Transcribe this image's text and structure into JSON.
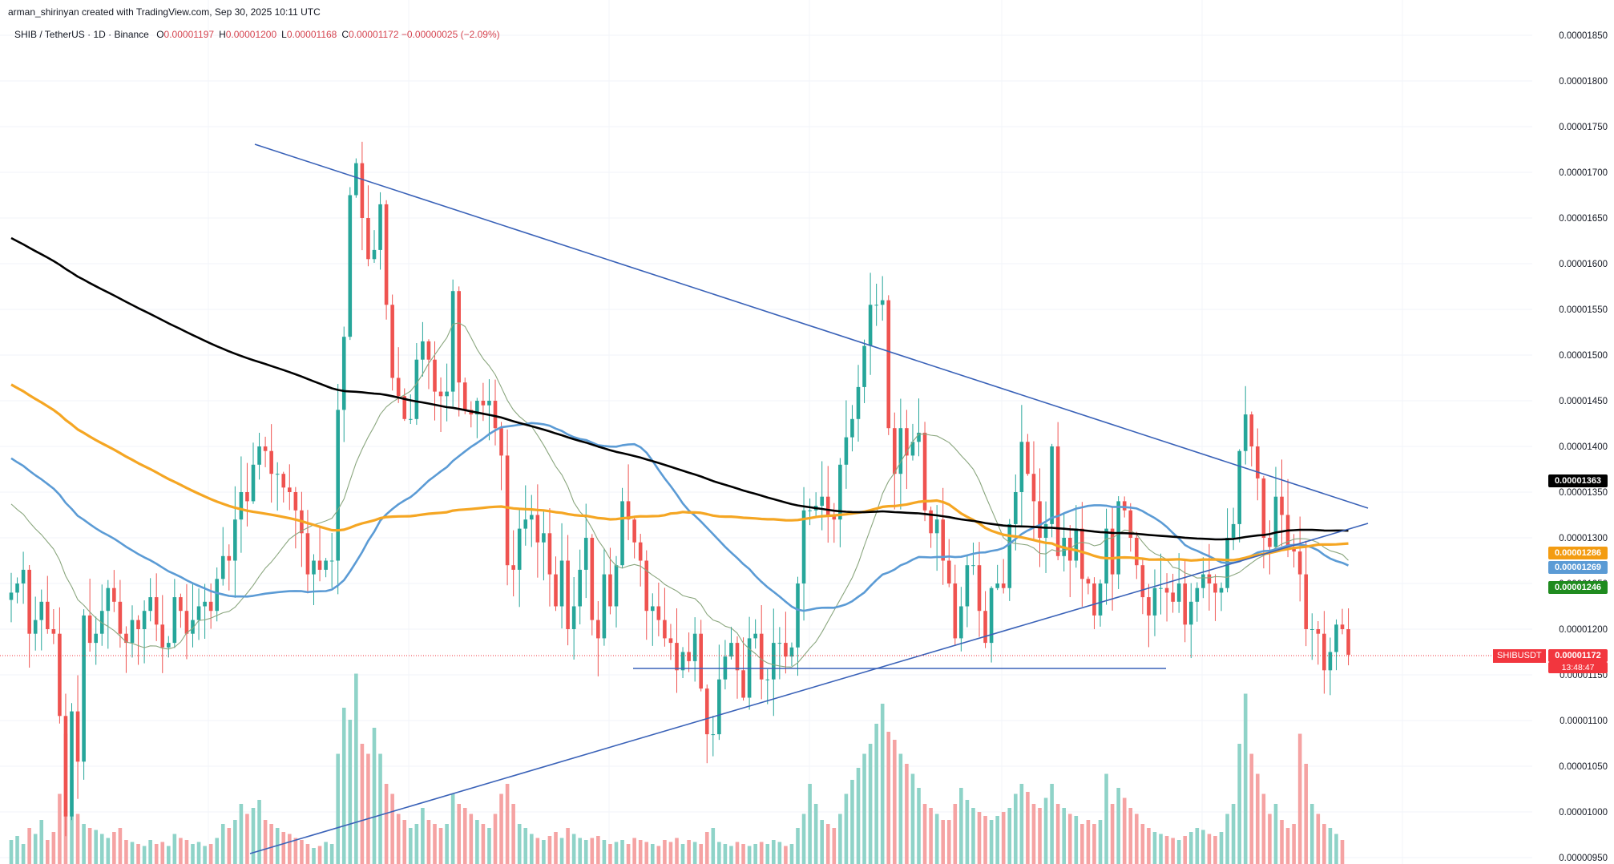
{
  "header": {
    "credit": "arman_shirinyan created with TradingView.com, Sep 30, 2025 10:11 UTC",
    "symbol": "SHIB / TetherUS · 1D · Binance",
    "ohlc": [
      {
        "label": "O",
        "value": "0.00001197"
      },
      {
        "label": "H",
        "value": "0.00001200"
      },
      {
        "label": "L",
        "value": "0.00001168"
      },
      {
        "label": "C",
        "value": "0.00001172"
      },
      {
        "label": "",
        "value": "−0.00000025 (−2.09%)"
      }
    ]
  },
  "price_tags": {
    "ma200": {
      "text": "0.00001363",
      "color": "#000000"
    },
    "ma100": {
      "text": "0.00001286",
      "color": "#f39c12"
    },
    "ma50": {
      "text": "0.00001269",
      "color": "#5b9bd5"
    },
    "ma20": {
      "text": "0.00001246",
      "color": "#1f8b1f"
    },
    "last": {
      "symbol": "SHIBUSDT",
      "text": "0.00001172",
      "countdown": "13:48:47",
      "color": "#f2363e"
    }
  },
  "colors": {
    "up": "#26a69a",
    "down": "#ef5350",
    "vol_up": "#8fd3c8",
    "vol_down": "#f5a3a3",
    "ma200": "#000000",
    "ma100": "#f5a623",
    "ma50": "#5b9bd5",
    "ma20": "#8aa67e",
    "trendline": "#3a62b8"
  },
  "chart_data": {
    "type": "candlestick",
    "y_axis": {
      "ticks": [
        "0.00001850",
        "0.00001800",
        "0.00001750",
        "0.00001700",
        "0.00001650",
        "0.00001600",
        "0.00001550",
        "0.00001500",
        "0.00001450",
        "0.00001400",
        "0.00001350",
        "0.00001300",
        "0.00001250",
        "0.00001200",
        "0.00001150",
        "0.00001100",
        "0.00001050",
        "0.00001000",
        "0.00000950"
      ],
      "ylim": [
        9.45e-06,
        1.885e-05
      ],
      "position": "right",
      "grid": true
    },
    "last_price": 1.172e-05,
    "closes": [
      1.24,
      1.25,
      1.265,
      1.195,
      1.21,
      1.23,
      1.2,
      1.195,
      1.105,
      0.995,
      1.11,
      1.055,
      1.215,
      1.185,
      1.195,
      1.22,
      1.245,
      1.23,
      1.195,
      1.185,
      1.21,
      1.2,
      1.22,
      1.235,
      1.205,
      1.18,
      1.185,
      1.235,
      1.22,
      1.195,
      1.21,
      1.225,
      1.23,
      1.22,
      1.255,
      1.28,
      1.275,
      1.32,
      1.35,
      1.34,
      1.38,
      1.4,
      1.395,
      1.37,
      1.37,
      1.355,
      1.35,
      1.33,
      1.305,
      1.26,
      1.275,
      1.265,
      1.275,
      1.275,
      1.44,
      1.52,
      1.675,
      1.71,
      1.65,
      1.605,
      1.615,
      1.665,
      1.555,
      1.475,
      1.455,
      1.43,
      1.43,
      1.495,
      1.515,
      1.495,
      1.46,
      1.455,
      1.46,
      1.57,
      1.47,
      1.44,
      1.435,
      1.45,
      1.445,
      1.45,
      1.42,
      1.39,
      1.27,
      1.265,
      1.31,
      1.32,
      1.325,
      1.295,
      1.305,
      1.26,
      1.225,
      1.275,
      1.2,
      1.225,
      1.265,
      1.3,
      1.21,
      1.19,
      1.26,
      1.225,
      1.27,
      1.34,
      1.32,
      1.295,
      1.275,
      1.22,
      1.225,
      1.21,
      1.19,
      1.185,
      1.155,
      1.175,
      1.165,
      1.195,
      1.135,
      1.085,
      1.085,
      1.145,
      1.17,
      1.185,
      1.155,
      1.125,
      1.19,
      1.195,
      1.145,
      1.145,
      1.185,
      1.185,
      1.17,
      1.18,
      1.25,
      1.33,
      1.33,
      1.335,
      1.345,
      1.325,
      1.32,
      1.38,
      1.41,
      1.43,
      1.465,
      1.51,
      1.555,
      1.555,
      1.56,
      1.42,
      1.37,
      1.42,
      1.39,
      1.405,
      1.415,
      1.33,
      1.305,
      1.32,
      1.275,
      1.25,
      1.19,
      1.225,
      1.27,
      1.27,
      1.22,
      1.185,
      1.245,
      1.25,
      1.245,
      1.315,
      1.35,
      1.405,
      1.37,
      1.34,
      1.3,
      1.315,
      1.4,
      1.28,
      1.3,
      1.275,
      1.31,
      1.255,
      1.25,
      1.215,
      1.25,
      1.31,
      1.26,
      1.34,
      1.33,
      1.3,
      1.27,
      1.235,
      1.215,
      1.245,
      1.245,
      1.24,
      1.23,
      1.25,
      1.205,
      1.23,
      1.245,
      1.26,
      1.25,
      1.24,
      1.245,
      1.3,
      1.315,
      1.395,
      1.435,
      1.4,
      1.365,
      1.3,
      1.29,
      1.345,
      1.325,
      1.29,
      1.285,
      1.26,
      1.2,
      1.2,
      1.195,
      1.155,
      1.175,
      1.205,
      1.2,
      1.172
    ],
    "volume_relative": [
      0.12,
      0.14,
      0.1,
      0.18,
      0.15,
      0.22,
      0.12,
      0.16,
      0.35,
      0.65,
      0.42,
      0.25,
      0.2,
      0.18,
      0.17,
      0.15,
      0.13,
      0.16,
      0.18,
      0.12,
      0.11,
      0.1,
      0.09,
      0.12,
      0.1,
      0.11,
      0.09,
      0.15,
      0.13,
      0.12,
      0.1,
      0.11,
      0.09,
      0.1,
      0.13,
      0.2,
      0.18,
      0.22,
      0.3,
      0.25,
      0.28,
      0.32,
      0.22,
      0.2,
      0.18,
      0.16,
      0.15,
      0.13,
      0.12,
      0.1,
      0.08,
      0.09,
      0.11,
      0.1,
      0.55,
      0.78,
      0.72,
      0.95,
      0.6,
      0.55,
      0.68,
      0.55,
      0.4,
      0.35,
      0.25,
      0.22,
      0.18,
      0.2,
      0.28,
      0.22,
      0.2,
      0.18,
      0.2,
      0.35,
      0.3,
      0.28,
      0.25,
      0.22,
      0.2,
      0.18,
      0.25,
      0.35,
      0.4,
      0.3,
      0.2,
      0.18,
      0.15,
      0.13,
      0.12,
      0.14,
      0.16,
      0.13,
      0.18,
      0.15,
      0.13,
      0.12,
      0.13,
      0.14,
      0.12,
      0.1,
      0.11,
      0.12,
      0.1,
      0.13,
      0.12,
      0.11,
      0.1,
      0.09,
      0.12,
      0.11,
      0.13,
      0.1,
      0.12,
      0.11,
      0.1,
      0.16,
      0.18,
      0.11,
      0.1,
      0.09,
      0.11,
      0.1,
      0.09,
      0.1,
      0.11,
      0.1,
      0.12,
      0.11,
      0.09,
      0.1,
      0.18,
      0.25,
      0.4,
      0.3,
      0.22,
      0.2,
      0.18,
      0.25,
      0.35,
      0.42,
      0.48,
      0.55,
      0.6,
      0.7,
      0.8,
      0.66,
      0.62,
      0.55,
      0.5,
      0.45,
      0.38,
      0.3,
      0.28,
      0.25,
      0.22,
      0.22,
      0.3,
      0.38,
      0.32,
      0.28,
      0.26,
      0.24,
      0.22,
      0.24,
      0.26,
      0.28,
      0.35,
      0.4,
      0.36,
      0.3,
      0.28,
      0.33,
      0.4,
      0.3,
      0.28,
      0.25,
      0.24,
      0.2,
      0.22,
      0.2,
      0.22,
      0.45,
      0.3,
      0.38,
      0.33,
      0.28,
      0.25,
      0.2,
      0.18,
      0.16,
      0.15,
      0.14,
      0.13,
      0.12,
      0.14,
      0.16,
      0.18,
      0.17,
      0.15,
      0.14,
      0.16,
      0.25,
      0.3,
      0.6,
      0.85,
      0.55,
      0.45,
      0.35,
      0.25,
      0.3,
      0.22,
      0.18,
      0.2,
      0.65,
      0.5,
      0.3,
      0.25,
      0.2,
      0.18,
      0.15,
      0.12
    ]
  }
}
